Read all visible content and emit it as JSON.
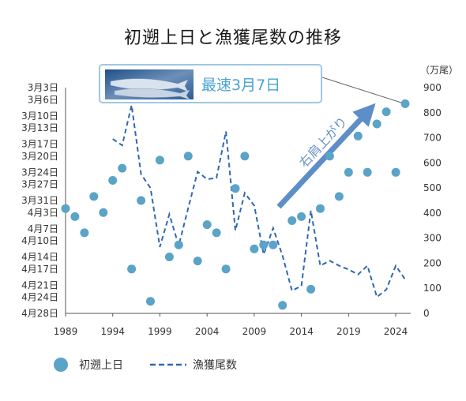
{
  "chart_data": {
    "type": "scatter+line",
    "title": "初遡上日と漁獲尾数の推移",
    "x_ticks": [
      1989,
      1994,
      1999,
      2004,
      2009,
      2014,
      2019,
      2024
    ],
    "x_range": [
      1989,
      2025
    ],
    "left_axis": {
      "ticks": [
        "3月3日",
        "3月6日",
        "3月10日",
        "3月13日",
        "3月17日",
        "3月20日",
        "3月24日",
        "3月27日",
        "3月31日",
        "4月3日",
        "4月7日",
        "4月10日",
        "4月14日",
        "4月17日",
        "4月21日",
        "4月24日",
        "4月28日"
      ]
    },
    "right_axis": {
      "unit": "（万尾）",
      "ticks": [
        0,
        100,
        200,
        300,
        400,
        500,
        600,
        700,
        800,
        900
      ],
      "range": [
        0,
        900
      ]
    },
    "series": [
      {
        "name": "初遡上日",
        "kind": "scatter",
        "color": "#5ba3c7",
        "x": [
          1989,
          1990,
          1991,
          1992,
          1993,
          1994,
          1995,
          1996,
          1997,
          1998,
          1999,
          2000,
          2001,
          2002,
          2003,
          2004,
          2005,
          2006,
          2007,
          2008,
          2009,
          2010,
          2011,
          2012,
          2013,
          2014,
          2015,
          2016,
          2017,
          2018,
          2019,
          2020,
          2021,
          2022,
          2023,
          2024,
          2025
        ],
        "y": [
          "4月2日",
          "4月4日",
          "4月8日",
          "3月30日",
          "4月3日",
          "3月26日",
          "3月23日",
          "4月17日",
          "3月31日",
          "4月25日",
          "3月21日",
          "4月14日",
          "4月11日",
          "3月20日",
          "4月15日",
          "4月6日",
          "4月8日",
          "4月17日",
          "3月28日",
          "3月20日",
          "4月12日",
          "4月11日",
          "4月11日",
          "4月26日",
          "4月5日",
          "4月4日",
          "4月22日",
          "4月2日",
          "3月20日",
          "3月30日",
          "3月24日",
          "3月15日",
          "3月24日",
          "3月12日",
          "3月9日",
          "3月24日",
          "3月7日"
        ]
      },
      {
        "name": "漁獲尾数",
        "kind": "line",
        "dash": true,
        "color": "#2f68b2",
        "x": [
          1994,
          1995,
          1996,
          1997,
          1998,
          1999,
          2000,
          2001,
          2002,
          2003,
          2004,
          2005,
          2006,
          2007,
          2008,
          2009,
          2010,
          2011,
          2012,
          2013,
          2014,
          2015,
          2016,
          2017,
          2018,
          2019,
          2020,
          2021,
          2022,
          2023,
          2024,
          2025
        ],
        "y": [
          695,
          670,
          830,
          555,
          500,
          265,
          395,
          270,
          420,
          565,
          535,
          540,
          725,
          330,
          480,
          430,
          235,
          340,
          230,
          90,
          110,
          410,
          190,
          210,
          190,
          175,
          155,
          190,
          65,
          95,
          190,
          135
        ]
      }
    ],
    "legend": {
      "placement": "bottom-left"
    },
    "grid": false
  },
  "callout": {
    "text": "最速3月7日",
    "image_icon": "fish-photo-icon"
  },
  "trend_label": "右肩上がり"
}
